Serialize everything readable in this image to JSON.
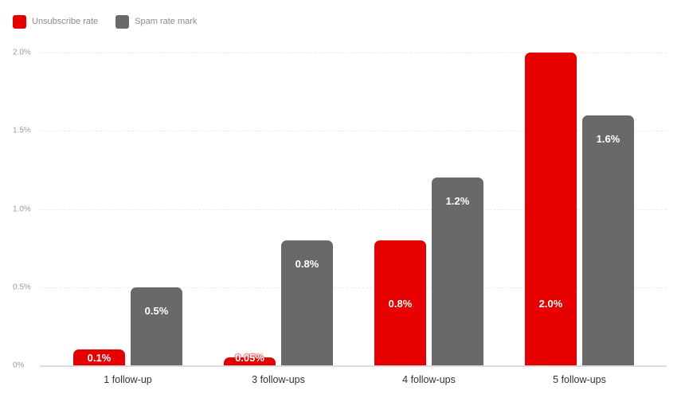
{
  "chart_data": {
    "type": "bar",
    "title": "",
    "xlabel": "",
    "ylabel": "",
    "categories": [
      "1 follow-up",
      "3 follow-ups",
      "4 follow-ups",
      "5 follow-ups"
    ],
    "series": [
      {
        "name": "Unsubscribe rate",
        "color": "#e60000",
        "values": [
          0.1,
          0.05,
          0.8,
          2.0
        ],
        "labels": [
          "0.1%",
          "0.05%",
          "0.8%",
          "2.0%"
        ]
      },
      {
        "name": "Spam rate mark",
        "color": "#696969",
        "values": [
          0.5,
          0.8,
          1.2,
          1.6
        ],
        "labels": [
          "0.5%",
          "0.8%",
          "1.2%",
          "1.6%"
        ]
      }
    ],
    "ylim": [
      0,
      2.0
    ],
    "yticks": [
      "0%",
      "0.5%",
      "1.0%",
      "1.5%",
      "2.0%"
    ],
    "grid": true,
    "legend_position": "top-left"
  },
  "legend": {
    "items": [
      {
        "label": "Unsubscribe rate",
        "color": "#e60000"
      },
      {
        "label": "Spam rate mark",
        "color": "#696969"
      }
    ]
  }
}
